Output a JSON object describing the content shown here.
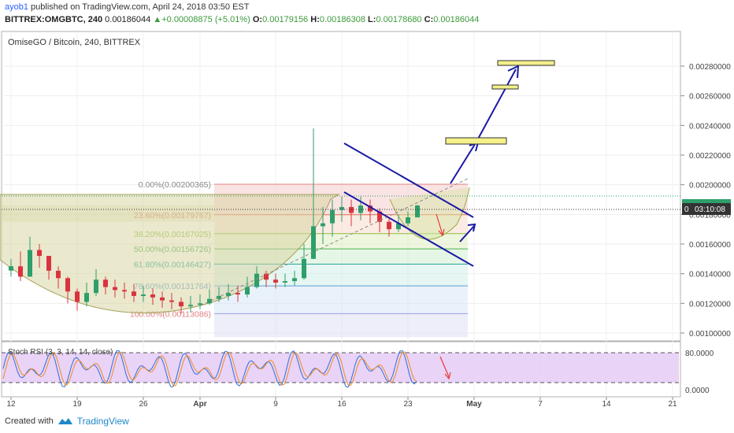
{
  "header": {
    "username": "ayob1",
    "published_text": "published on TradingView.com, April 24, 2018 03:50 EST",
    "symbol": "BITTREX:OMGBTC, 240",
    "last": "0.00186044",
    "change": "+0.00008875 (+5.01%)",
    "o_label": "O:",
    "o_value": "0.00179156",
    "h_label": "H:",
    "h_value": "0.00186308",
    "l_label": "L:",
    "l_value": "0.00178680",
    "c_label": "C:",
    "c_value": "0.00186044"
  },
  "footer": {
    "created_with": "Created with",
    "brand": "TradingView"
  },
  "colors": {
    "bull": "#2e9e6a",
    "bear": "#d9343e",
    "annotation": "#1a1aa6",
    "arrow_red": "#e53935",
    "box_fill": "#f4f08a",
    "rsi_fill": "#e3c8f5"
  },
  "chart_data": {
    "type": "candlestick",
    "title": "OmiseGO / Bitcoin, 240, BITTREX",
    "x": [
      "Mar 12",
      "Mar 13",
      "Mar 14",
      "Mar 15",
      "Mar 16",
      "Mar 17",
      "Mar 18",
      "Mar 19",
      "Mar 20",
      "Mar 21",
      "Mar 22",
      "Mar 23",
      "Mar 24",
      "Mar 25",
      "Mar 26",
      "Mar 27",
      "Mar 28",
      "Mar 29",
      "Mar 30",
      "Mar 31",
      "Apr 1",
      "Apr 2",
      "Apr 3",
      "Apr 4",
      "Apr 5",
      "Apr 6",
      "Apr 7",
      "Apr 8",
      "Apr 9",
      "Apr 10",
      "Apr 11",
      "Apr 12",
      "Apr 13",
      "Apr 14",
      "Apr 15",
      "Apr 16",
      "Apr 17",
      "Apr 18",
      "Apr 19",
      "Apr 20",
      "Apr 21",
      "Apr 22",
      "Apr 23",
      "Apr 24"
    ],
    "close": [
      0.00145,
      0.00138,
      0.00156,
      0.00152,
      0.00142,
      0.00137,
      0.00128,
      0.00121,
      0.00127,
      0.00136,
      0.00131,
      0.00129,
      0.00128,
      0.00125,
      0.00126,
      0.00124,
      0.00122,
      0.00121,
      0.00118,
      0.00119,
      0.0012,
      0.00123,
      0.00125,
      0.00127,
      0.00126,
      0.00131,
      0.0014,
      0.00136,
      0.00134,
      0.00135,
      0.00137,
      0.0015,
      0.00172,
      0.00174,
      0.00183,
      0.00185,
      0.00181,
      0.00186,
      0.00182,
      0.00175,
      0.0017,
      0.00174,
      0.00178,
      0.00186044
    ],
    "high": [
      0.0015,
      0.00155,
      0.00165,
      0.0016,
      0.0015,
      0.00145,
      0.00138,
      0.0013,
      0.00134,
      0.00143,
      0.00138,
      0.00136,
      0.00134,
      0.00133,
      0.00132,
      0.0013,
      0.00128,
      0.00127,
      0.00124,
      0.00125,
      0.00126,
      0.00129,
      0.00131,
      0.00133,
      0.00132,
      0.00138,
      0.00145,
      0.00142,
      0.0014,
      0.0014,
      0.00142,
      0.0016,
      0.00238,
      0.00185,
      0.0019,
      0.00192,
      0.0019,
      0.00192,
      0.0019,
      0.00184,
      0.00178,
      0.0018,
      0.00182,
      0.00186308
    ],
    "low": [
      0.00138,
      0.00135,
      0.0014,
      0.00144,
      0.00136,
      0.0013,
      0.0012,
      0.00115,
      0.00118,
      0.00125,
      0.00126,
      0.00124,
      0.00123,
      0.00121,
      0.00121,
      0.00119,
      0.00117,
      0.00116,
      0.00113,
      0.00114,
      0.00116,
      0.00119,
      0.00121,
      0.00122,
      0.00121,
      0.00124,
      0.0013,
      0.00131,
      0.0013,
      0.00131,
      0.00132,
      0.00136,
      0.0015,
      0.0016,
      0.00165,
      0.00175,
      0.00172,
      0.00176,
      0.00174,
      0.00168,
      0.00165,
      0.00168,
      0.00172,
      0.0017868
    ],
    "ylim": [
      0.00095,
      0.00288
    ],
    "y_ticks": [
      "0.00100000",
      "0.00120000",
      "0.00140000",
      "0.00160000",
      "0.00180000",
      "0.00200000",
      "0.00220000",
      "0.00240000",
      "0.00260000",
      "0.00280000"
    ],
    "x_ticks": [
      "12",
      "19",
      "26",
      "Apr",
      "9",
      "16",
      "23",
      "May",
      "7",
      "14",
      "21"
    ],
    "last_price_label": "0.00186044",
    "countdown_label": "03:10:08",
    "countdown_price_label": "0",
    "fibonacci": [
      {
        "label": "0.00%(0.00200365)",
        "value": 0.00200365
      },
      {
        "label": "23.60%(0.00179767)",
        "value": 0.00179767
      },
      {
        "label": "38.20%(0.00167025)",
        "value": 0.00167025
      },
      {
        "label": "50.00%(0.00156726)",
        "value": 0.00156726
      },
      {
        "label": "61.80%(0.00146427)",
        "value": 0.00146427
      },
      {
        "label": "78.60%(0.00131764)",
        "value": 0.00131764
      },
      {
        "label": "100.00%(0.00113086)",
        "value": 0.00113086
      }
    ],
    "indicator": {
      "label": "Stoch RSI (3, 3, 14, 14, close)",
      "y_ticks": [
        "80.0000",
        "0.0000"
      ]
    }
  }
}
